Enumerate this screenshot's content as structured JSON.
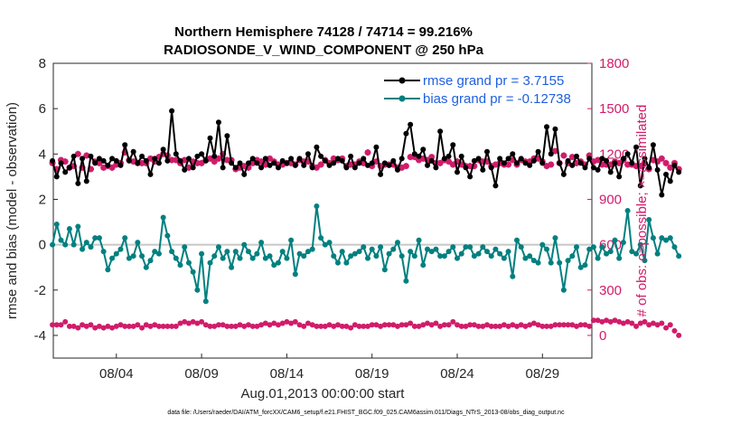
{
  "chart_data": {
    "type": "line",
    "title_line1": "Northern Hemisphere 74128 / 74714 = 99.216%",
    "title_line2": "RADIOSONDE_V_WIND_COMPONENT @ 250 hPa",
    "ylabel_left": "rmse and bias (model - observation)",
    "ylabel_right": "# of obs: o=possible; ×=assimilated",
    "xlabel": "Aug.01,2013 00:00:00 start",
    "footnote": "data file: /Users/raeder/DAI/ATM_forcXX/CAM6_setup/f.e21.FHIST_BGC.f09_025.CAM6assim.011/Diags_NTrS_2013-08/obs_diag_output.nc",
    "ylim_left": [
      -5,
      8
    ],
    "yticks_left": [
      "8",
      "6",
      "4",
      "2",
      "0",
      "-2",
      "-4"
    ],
    "ylim_right": [
      -150,
      1800
    ],
    "yticks_right": [
      "1800",
      "1500",
      "1200",
      "900",
      "600",
      "300",
      "0"
    ],
    "xlim_days": [
      0.3,
      31.9
    ],
    "xtick_labels": [
      "08/04",
      "08/09",
      "08/14",
      "08/19",
      "08/24",
      "08/29"
    ],
    "legend": {
      "rmse": "rmse grand pr = 3.7155",
      "bias": "bias grand pr = -0.12738"
    },
    "colors": {
      "rmse": "#000000",
      "bias": "#00807f",
      "obs": "#d01c6a",
      "zero_line": "#c8c8c8",
      "legend_text": "#1f5fe0"
    },
    "x_start_day": 0.25,
    "x_step_days": 0.25,
    "series": [
      {
        "name": "rmse",
        "values": [
          3.7,
          3.0,
          3.6,
          3.2,
          3.4,
          3.9,
          2.7,
          3.8,
          2.8,
          3.9,
          3.6,
          3.8,
          3.7,
          3.5,
          3.8,
          3.7,
          3.5,
          4.4,
          3.7,
          4.1,
          3.6,
          3.9,
          3.7,
          3.1,
          3.8,
          3.6,
          4.2,
          3.7,
          5.9,
          4.0,
          3.7,
          3.3,
          3.8,
          3.4,
          3.9,
          4.0,
          3.7,
          4.7,
          3.9,
          5.4,
          3.4,
          4.8,
          3.6,
          3.4,
          3.6,
          3.1,
          3.6,
          3.8,
          3.6,
          3.4,
          3.8,
          3.5,
          3.6,
          3.4,
          3.7,
          3.6,
          3.8,
          3.5,
          3.8,
          3.5,
          4.0,
          3.4,
          4.3,
          3.9,
          3.7,
          3.5,
          3.6,
          3.8,
          3.7,
          3.4,
          3.9,
          3.4,
          3.6,
          3.8,
          3.5,
          3.6,
          4.3,
          3.1,
          3.6,
          3.5,
          3.7,
          3.3,
          3.8,
          4.9,
          5.3,
          4.0,
          3.9,
          4.2,
          3.5,
          3.7,
          3.4,
          5.0,
          3.8,
          3.9,
          4.4,
          3.2,
          3.9,
          3.4,
          3.0,
          3.7,
          3.8,
          3.3,
          4.1,
          3.4,
          2.6,
          3.8,
          3.6,
          3.8,
          4.0,
          3.6,
          3.8,
          3.6,
          3.5,
          3.7,
          4.1,
          3.6,
          5.2,
          4.0,
          5.1,
          3.6,
          3.1,
          3.7,
          3.5,
          3.9,
          3.6,
          3.4,
          3.8,
          3.4,
          3.3,
          3.8,
          3.7,
          3.2,
          3.6,
          3.0,
          3.8,
          4.0,
          3.6,
          4.3,
          2.6,
          3.8,
          3.4,
          4.4,
          3.3,
          2.2,
          3.1,
          2.8,
          3.5,
          3.2
        ]
      },
      {
        "name": "bias",
        "values": [
          0.0,
          0.9,
          0.2,
          0.0,
          0.7,
          0.0,
          0.8,
          -0.2,
          0.1,
          -0.1,
          0.3,
          0.3,
          -0.3,
          -1.1,
          -0.6,
          -0.4,
          -0.2,
          0.3,
          -0.6,
          -0.5,
          0.1,
          -0.5,
          -1.0,
          -0.7,
          -0.3,
          -0.4,
          1.2,
          0.4,
          -0.3,
          -0.6,
          -0.9,
          -0.1,
          -0.8,
          -1.2,
          -2.0,
          -0.4,
          -2.5,
          -0.8,
          -0.5,
          -0.1,
          -0.6,
          -0.3,
          -1.0,
          -0.3,
          -0.6,
          0.0,
          -0.3,
          -0.6,
          -0.4,
          0.1,
          -0.6,
          -0.5,
          -0.9,
          -0.8,
          -0.3,
          -0.6,
          0.2,
          -1.3,
          -0.4,
          -0.5,
          -0.3,
          -0.2,
          1.7,
          0.3,
          0.0,
          0.1,
          -0.5,
          -0.8,
          -0.3,
          -0.8,
          -0.5,
          -0.4,
          -0.3,
          -0.1,
          -0.6,
          -0.2,
          -0.5,
          -0.1,
          -1.1,
          -0.4,
          -0.2,
          0.1,
          -0.5,
          -1.6,
          -0.3,
          -0.5,
          0.2,
          -0.9,
          -0.2,
          -0.3,
          -0.2,
          -0.5,
          -0.5,
          -0.3,
          -0.1,
          -0.6,
          -0.4,
          -0.1,
          -0.1,
          -0.5,
          -0.4,
          -0.1,
          -0.3,
          -0.5,
          -0.2,
          -0.4,
          -0.6,
          -0.3,
          -1.4,
          0.2,
          -0.1,
          -0.6,
          -0.5,
          -0.7,
          -0.8,
          0.0,
          -0.2,
          -0.8,
          0.3,
          -0.8,
          -2.0,
          -0.7,
          -0.5,
          -0.1,
          -1.0,
          -0.9,
          -0.2,
          -0.1,
          -0.6,
          -0.1,
          -0.4,
          -0.3,
          0.2,
          -0.6,
          0.1,
          1.5,
          -0.3,
          -0.4,
          0.0,
          -0.7,
          1.1,
          0.3,
          -0.4,
          0.3,
          0.2,
          0.3,
          -0.1,
          -0.5
        ]
      },
      {
        "name": "obs_assimilated",
        "values": [
          1140,
          1100,
          1160,
          1150,
          1110,
          1120,
          1200,
          1110,
          1190,
          1100,
          1150,
          1140,
          1110,
          1120,
          1110,
          1130,
          1140,
          1210,
          1160,
          1150,
          1140,
          1140,
          1140,
          1170,
          1150,
          1180,
          1200,
          1190,
          1160,
          1160,
          1140,
          1160,
          1110,
          1150,
          1140,
          1140,
          1160,
          1170,
          1150,
          1170,
          1200,
          1160,
          1160,
          1100,
          1110,
          1120,
          1110,
          1140,
          1160,
          1150,
          1130,
          1170,
          1150,
          1130,
          1130,
          1140,
          1140,
          1130,
          1160,
          1150,
          1150,
          1120,
          1110,
          1130,
          1160,
          1140,
          1170,
          1160,
          1170,
          1120,
          1130,
          1130,
          1150,
          1140,
          1210,
          1120,
          1150,
          1120,
          1130,
          1130,
          1130,
          1110,
          1110,
          1120,
          1180,
          1180,
          1160,
          1170,
          1160,
          1180,
          1140,
          1140,
          1160,
          1150,
          1130,
          1150,
          1130,
          1120,
          1120,
          1120,
          1160,
          1150,
          1150,
          1120,
          1130,
          1140,
          1130,
          1130,
          1160,
          1130,
          1160,
          1150,
          1150,
          1170,
          1170,
          1150,
          1120,
          1130,
          1220,
          1140,
          1190,
          1140,
          1180,
          1140,
          1150,
          1130,
          1190,
          1150,
          1160,
          1130,
          1130,
          1130,
          1150,
          1140,
          1160,
          1130,
          1130,
          1120,
          1120,
          1140,
          1100,
          1160,
          1150,
          1170,
          1140,
          1110,
          1140,
          1100
        ]
      },
      {
        "name": "obs_possible",
        "values": [
          70,
          70,
          70,
          90,
          60,
          60,
          50,
          70,
          60,
          70,
          50,
          60,
          50,
          60,
          50,
          60,
          70,
          60,
          60,
          60,
          70,
          50,
          70,
          60,
          70,
          60,
          60,
          60,
          60,
          60,
          80,
          90,
          80,
          90,
          80,
          90,
          70,
          60,
          60,
          70,
          70,
          60,
          60,
          60,
          70,
          60,
          70,
          60,
          60,
          70,
          80,
          70,
          80,
          70,
          80,
          90,
          80,
          90,
          70,
          60,
          80,
          70,
          60,
          60,
          60,
          70,
          60,
          70,
          60,
          60,
          50,
          70,
          60,
          60,
          60,
          70,
          70,
          60,
          70,
          70,
          70,
          60,
          70,
          70,
          80,
          60,
          60,
          70,
          80,
          70,
          80,
          60,
          70,
          70,
          90,
          70,
          60,
          60,
          70,
          70,
          60,
          60,
          70,
          60,
          60,
          60,
          70,
          60,
          70,
          60,
          70,
          60,
          70,
          80,
          70,
          60,
          60,
          60,
          70,
          70,
          70,
          70,
          70,
          60,
          70,
          70,
          60,
          100,
          100,
          90,
          100,
          90,
          100,
          90,
          80,
          90,
          80,
          60,
          80,
          90,
          70,
          80,
          70,
          80,
          50,
          70,
          30,
          0
        ]
      }
    ]
  }
}
